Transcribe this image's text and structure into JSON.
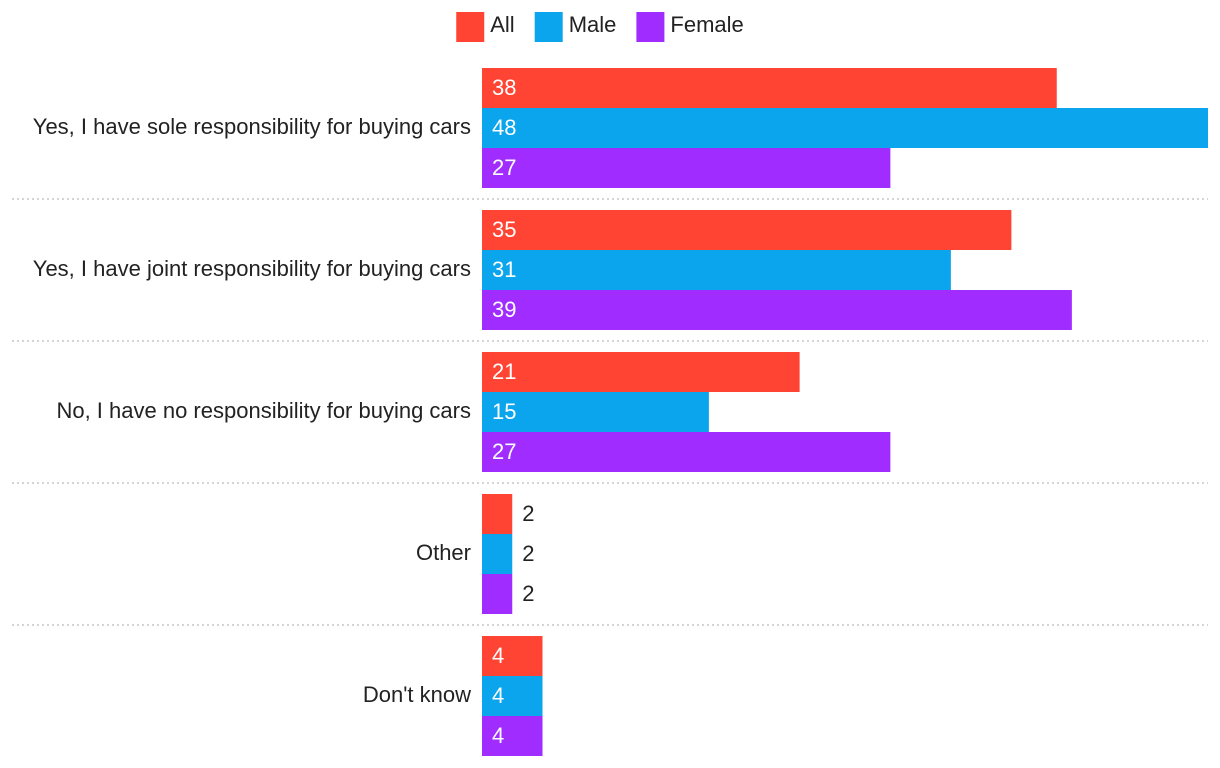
{
  "chart_data": {
    "type": "bar",
    "orientation": "horizontal",
    "categories": [
      "Yes, I have sole responsibility for buying cars",
      "Yes, I have joint responsibility for buying cars",
      "No, I have no responsibility for buying cars",
      "Other",
      "Don't know"
    ],
    "series": [
      {
        "name": "All",
        "color": "#ff4433",
        "values": [
          38,
          35,
          21,
          2,
          4
        ]
      },
      {
        "name": "Male",
        "color": "#0aa5ec",
        "values": [
          48,
          31,
          15,
          2,
          4
        ]
      },
      {
        "name": "Female",
        "color": "#a02cff",
        "values": [
          27,
          39,
          27,
          2,
          4
        ]
      }
    ],
    "legend": "top"
  }
}
